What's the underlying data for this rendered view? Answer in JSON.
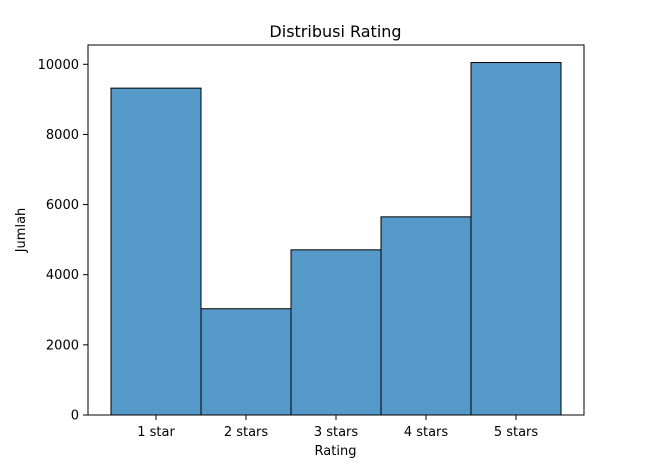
{
  "chart_data": {
    "type": "bar",
    "title": "Distribusi Rating",
    "xlabel": "Rating",
    "ylabel": "Jumlah",
    "categories": [
      "1 star",
      "2 stars",
      "3 stars",
      "4 stars",
      "5 stars"
    ],
    "values": [
      9320,
      3030,
      4710,
      5650,
      10050
    ],
    "ylim": [
      0,
      10550
    ],
    "yticks": [
      0,
      2000,
      4000,
      6000,
      8000,
      10000
    ],
    "ytick_labels": [
      "0",
      "2000",
      "4000",
      "6000",
      "8000",
      "10000"
    ],
    "grid": false,
    "legend": "none",
    "bar_color": "#5499c7",
    "bar_edge_color": "#000000"
  }
}
